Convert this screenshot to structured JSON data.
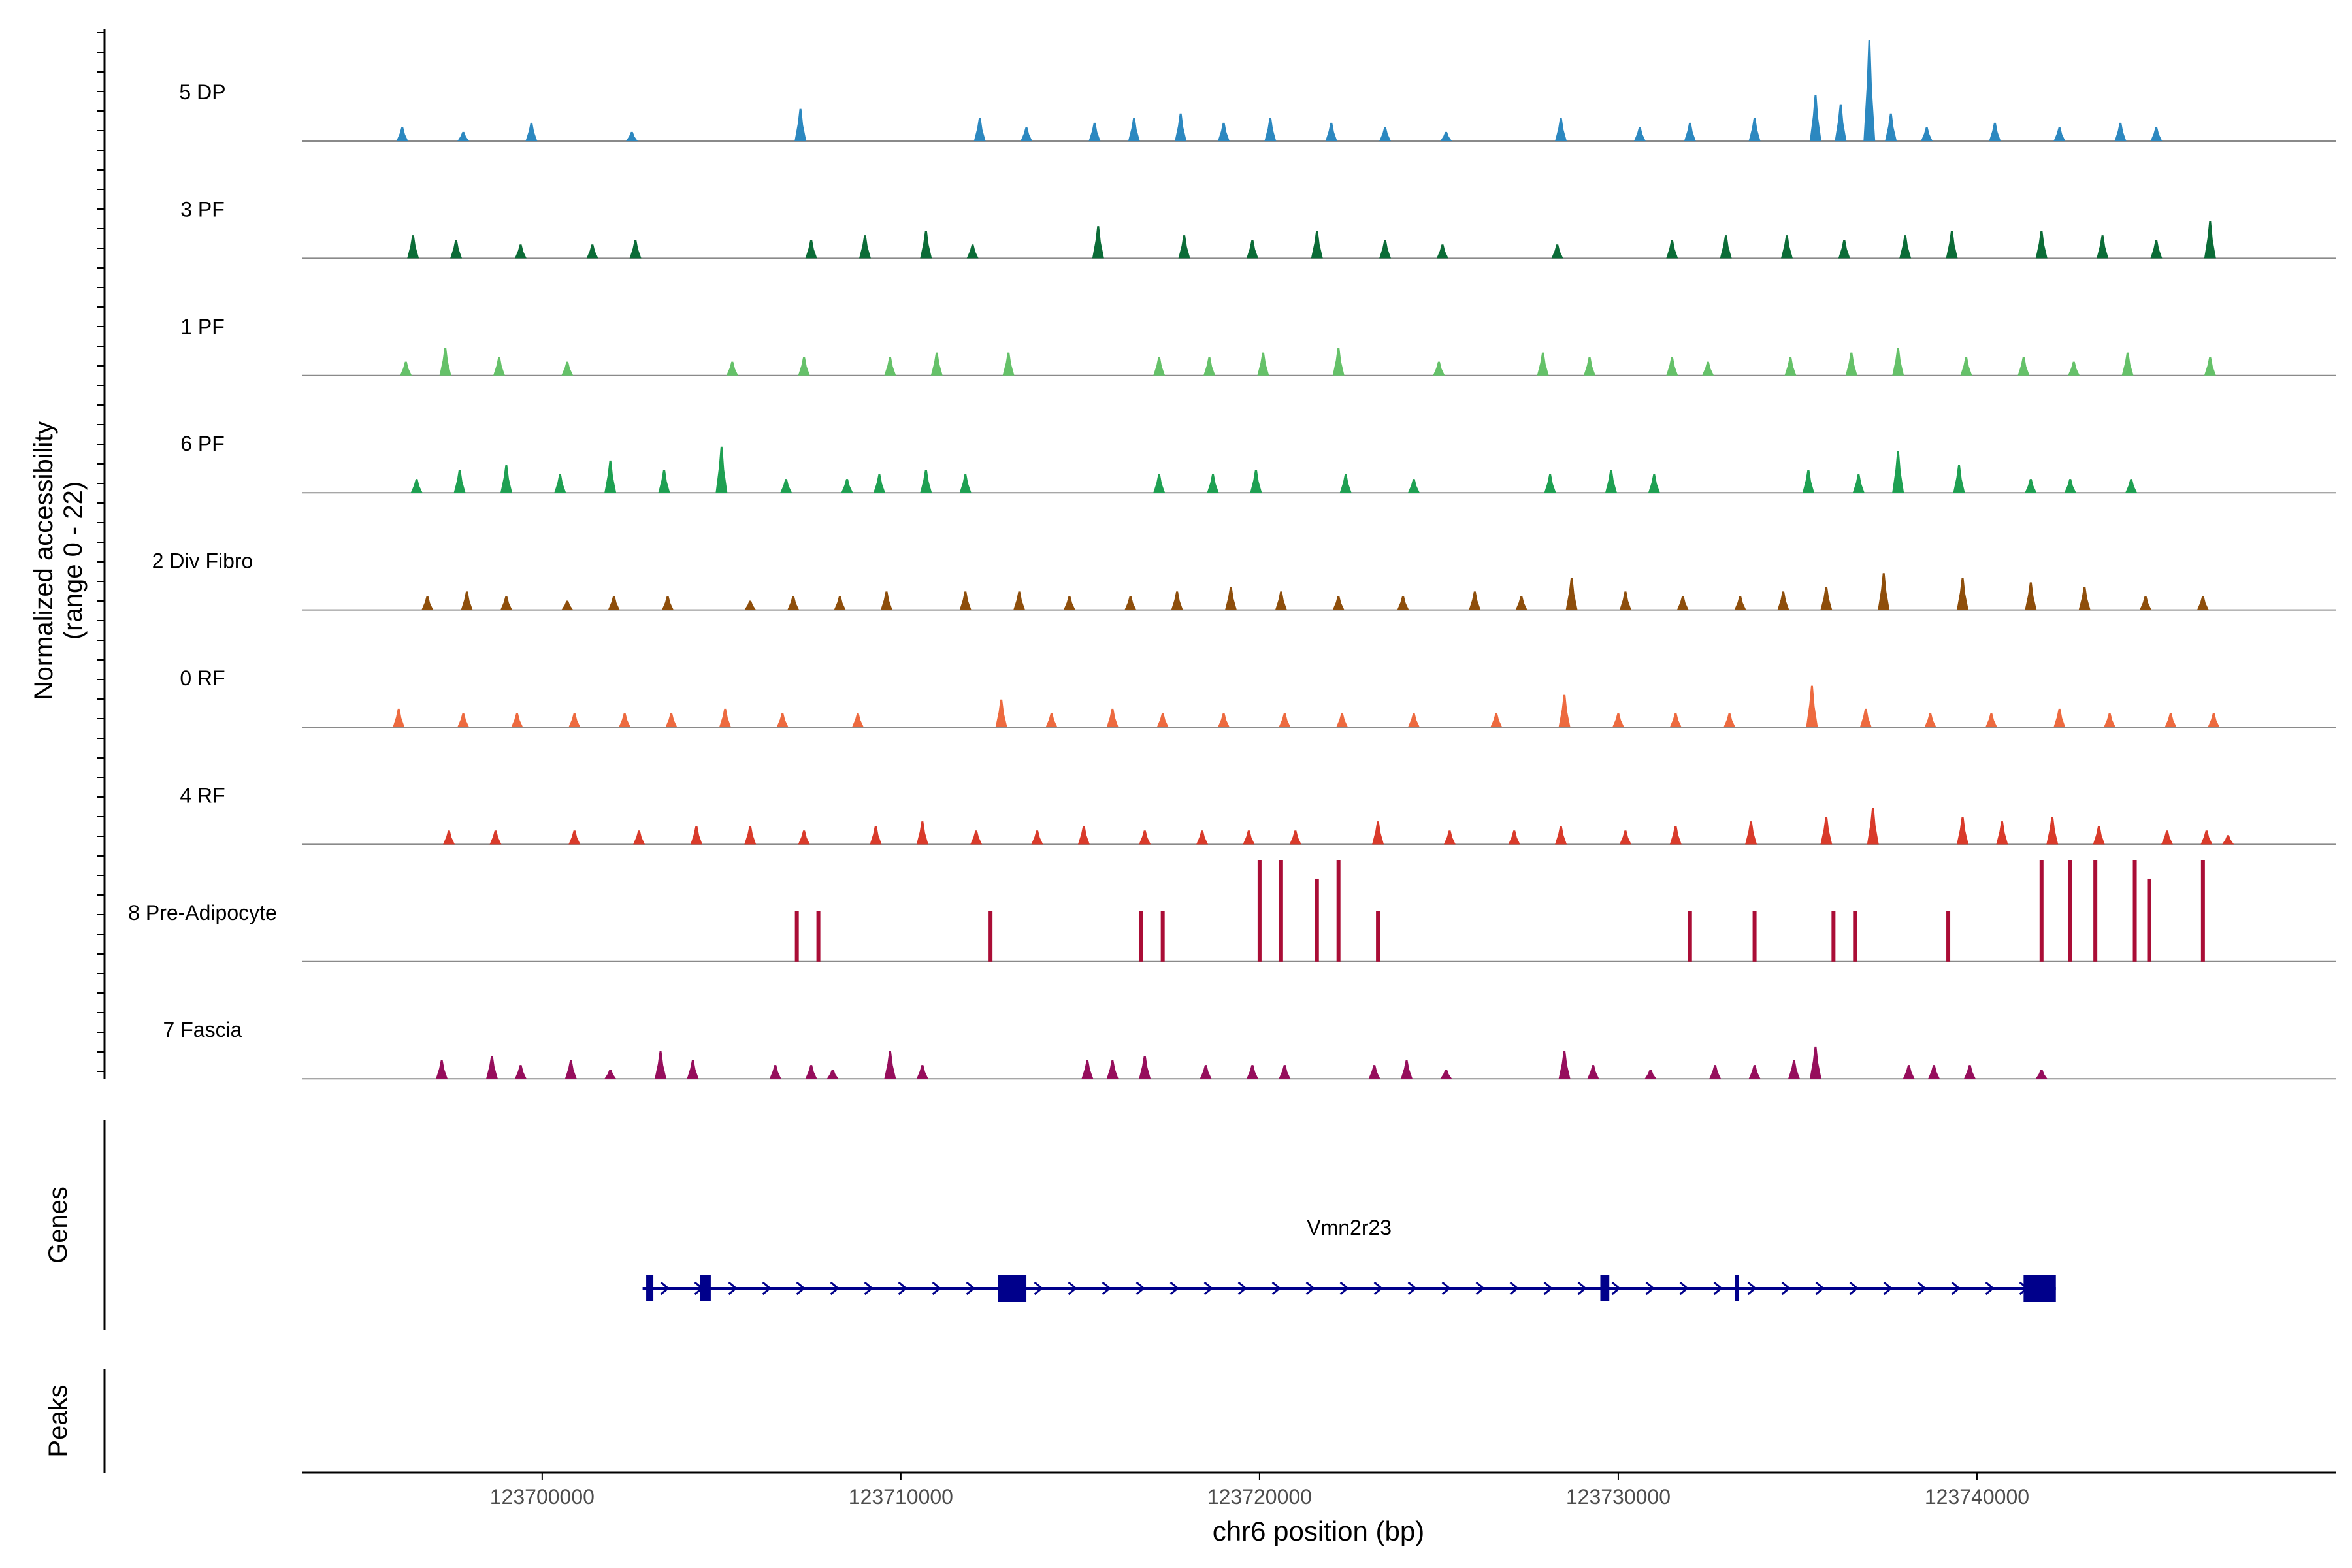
{
  "chart_data": {
    "type": "area",
    "title": "",
    "ylabel_line1": "Normalized accessibility",
    "ylabel_line2": "(range 0 - 22)",
    "ylim": [
      0,
      22
    ],
    "genes_label": "Genes",
    "peaks_label": "Peaks",
    "xlabel": "chr6 position (bp)",
    "xlim": [
      123693300,
      123750000
    ],
    "xticks": [
      123700000,
      123710000,
      123720000,
      123730000,
      123740000
    ],
    "xtick_labels": [
      "123700000",
      "123710000",
      "123720000",
      "123730000",
      "123740000"
    ],
    "series": [
      {
        "name": "5 DP",
        "color": "#2c88c0",
        "peaks": [
          [
            123696100,
            3
          ],
          [
            123697800,
            2
          ],
          [
            123699700,
            4
          ],
          [
            123702500,
            2
          ],
          [
            123707200,
            7
          ],
          [
            123712200,
            5
          ],
          [
            123713500,
            3
          ],
          [
            123715400,
            4
          ],
          [
            123716500,
            5
          ],
          [
            123717800,
            6
          ],
          [
            123719000,
            4
          ],
          [
            123720300,
            5
          ],
          [
            123722000,
            4
          ],
          [
            123723500,
            3
          ],
          [
            123725200,
            2
          ],
          [
            123728400,
            5
          ],
          [
            123730600,
            3
          ],
          [
            123732000,
            4
          ],
          [
            123733800,
            5
          ],
          [
            123735500,
            10
          ],
          [
            123736200,
            8
          ],
          [
            123737000,
            22
          ],
          [
            123737600,
            6
          ],
          [
            123738600,
            3
          ],
          [
            123740500,
            4
          ],
          [
            123742300,
            3
          ],
          [
            123744000,
            4
          ],
          [
            123745000,
            3
          ]
        ]
      },
      {
        "name": "3 PF",
        "color": "#0b6c37",
        "peaks": [
          [
            123696400,
            5
          ],
          [
            123697600,
            4
          ],
          [
            123699400,
            3
          ],
          [
            123701400,
            3
          ],
          [
            123702600,
            4
          ],
          [
            123707500,
            4
          ],
          [
            123709000,
            5
          ],
          [
            123710700,
            6
          ],
          [
            123712000,
            3
          ],
          [
            123715500,
            7
          ],
          [
            123717900,
            5
          ],
          [
            123719800,
            4
          ],
          [
            123721600,
            6
          ],
          [
            123723500,
            4
          ],
          [
            123725100,
            3
          ],
          [
            123728300,
            3
          ],
          [
            123731500,
            4
          ],
          [
            123733000,
            5
          ],
          [
            123734700,
            5
          ],
          [
            123736300,
            4
          ],
          [
            123738000,
            5
          ],
          [
            123739300,
            6
          ],
          [
            123741800,
            6
          ],
          [
            123743500,
            5
          ],
          [
            123745000,
            4
          ],
          [
            123746500,
            8
          ]
        ]
      },
      {
        "name": "1 PF",
        "color": "#65c169",
        "peaks": [
          [
            123696200,
            3
          ],
          [
            123697300,
            6
          ],
          [
            123698800,
            4
          ],
          [
            123700700,
            3
          ],
          [
            123705300,
            3
          ],
          [
            123707300,
            4
          ],
          [
            123709700,
            4
          ],
          [
            123711000,
            5
          ],
          [
            123713000,
            5
          ],
          [
            123717200,
            4
          ],
          [
            123718600,
            4
          ],
          [
            123720100,
            5
          ],
          [
            123722200,
            6
          ],
          [
            123725000,
            3
          ],
          [
            123727900,
            5
          ],
          [
            123729200,
            4
          ],
          [
            123731500,
            4
          ],
          [
            123732500,
            3
          ],
          [
            123734800,
            4
          ],
          [
            123736500,
            5
          ],
          [
            123737800,
            6
          ],
          [
            123739700,
            4
          ],
          [
            123741300,
            4
          ],
          [
            123742700,
            3
          ],
          [
            123744200,
            5
          ],
          [
            123746500,
            4
          ]
        ]
      },
      {
        "name": "6 PF",
        "color": "#1ea052",
        "peaks": [
          [
            123696500,
            3
          ],
          [
            123697700,
            5
          ],
          [
            123699000,
            6
          ],
          [
            123700500,
            4
          ],
          [
            123701900,
            7
          ],
          [
            123703400,
            5
          ],
          [
            123705000,
            10
          ],
          [
            123706800,
            3
          ],
          [
            123708500,
            3
          ],
          [
            123709400,
            4
          ],
          [
            123710700,
            5
          ],
          [
            123711800,
            4
          ],
          [
            123717200,
            4
          ],
          [
            123718700,
            4
          ],
          [
            123719900,
            5
          ],
          [
            123722400,
            4
          ],
          [
            123724300,
            3
          ],
          [
            123728100,
            4
          ],
          [
            123729800,
            5
          ],
          [
            123731000,
            4
          ],
          [
            123735300,
            5
          ],
          [
            123736700,
            4
          ],
          [
            123737800,
            9
          ],
          [
            123739500,
            6
          ],
          [
            123741500,
            3
          ],
          [
            123742600,
            3
          ],
          [
            123744300,
            3
          ]
        ]
      },
      {
        "name": "2 Div Fibro",
        "color": "#8e4e0b",
        "peaks": [
          [
            123696800,
            3
          ],
          [
            123697900,
            4
          ],
          [
            123699000,
            3
          ],
          [
            123700700,
            2
          ],
          [
            123702000,
            3
          ],
          [
            123703500,
            3
          ],
          [
            123705800,
            2
          ],
          [
            123707000,
            3
          ],
          [
            123708300,
            3
          ],
          [
            123709600,
            4
          ],
          [
            123711800,
            4
          ],
          [
            123713300,
            4
          ],
          [
            123714700,
            3
          ],
          [
            123716400,
            3
          ],
          [
            123717700,
            4
          ],
          [
            123719200,
            5
          ],
          [
            123720600,
            4
          ],
          [
            123722200,
            3
          ],
          [
            123724000,
            3
          ],
          [
            123726000,
            4
          ],
          [
            123727300,
            3
          ],
          [
            123728700,
            7
          ],
          [
            123730200,
            4
          ],
          [
            123731800,
            3
          ],
          [
            123733400,
            3
          ],
          [
            123734600,
            4
          ],
          [
            123735800,
            5
          ],
          [
            123737400,
            8
          ],
          [
            123739600,
            7
          ],
          [
            123741500,
            6
          ],
          [
            123743000,
            5
          ],
          [
            123744700,
            3
          ],
          [
            123746300,
            3
          ]
        ]
      },
      {
        "name": "0 RF",
        "color": "#ed6a3f",
        "peaks": [
          [
            123696000,
            4
          ],
          [
            123697800,
            3
          ],
          [
            123699300,
            3
          ],
          [
            123700900,
            3
          ],
          [
            123702300,
            3
          ],
          [
            123703600,
            3
          ],
          [
            123705100,
            4
          ],
          [
            123706700,
            3
          ],
          [
            123708800,
            3
          ],
          [
            123712800,
            6
          ],
          [
            123714200,
            3
          ],
          [
            123715900,
            4
          ],
          [
            123717300,
            3
          ],
          [
            123719000,
            3
          ],
          [
            123720700,
            3
          ],
          [
            123722300,
            3
          ],
          [
            123724300,
            3
          ],
          [
            123726600,
            3
          ],
          [
            123728500,
            7
          ],
          [
            123730000,
            3
          ],
          [
            123731600,
            3
          ],
          [
            123733100,
            3
          ],
          [
            123735400,
            9
          ],
          [
            123736900,
            4
          ],
          [
            123738700,
            3
          ],
          [
            123740400,
            3
          ],
          [
            123742300,
            4
          ],
          [
            123743700,
            3
          ],
          [
            123745400,
            3
          ],
          [
            123746600,
            3
          ]
        ]
      },
      {
        "name": "4 RF",
        "color": "#d93a2a",
        "peaks": [
          [
            123697400,
            3
          ],
          [
            123698700,
            3
          ],
          [
            123700900,
            3
          ],
          [
            123702700,
            3
          ],
          [
            123704300,
            4
          ],
          [
            123705800,
            4
          ],
          [
            123707300,
            3
          ],
          [
            123709300,
            4
          ],
          [
            123710600,
            5
          ],
          [
            123712100,
            3
          ],
          [
            123713800,
            3
          ],
          [
            123715100,
            4
          ],
          [
            123716800,
            3
          ],
          [
            123718400,
            3
          ],
          [
            123719700,
            3
          ],
          [
            123721000,
            3
          ],
          [
            123723300,
            5
          ],
          [
            123725300,
            3
          ],
          [
            123727100,
            3
          ],
          [
            123728400,
            4
          ],
          [
            123730200,
            3
          ],
          [
            123731600,
            4
          ],
          [
            123733700,
            5
          ],
          [
            123735800,
            6
          ],
          [
            123737100,
            8
          ],
          [
            123739600,
            6
          ],
          [
            123740700,
            5
          ],
          [
            123742100,
            6
          ],
          [
            123743400,
            4
          ],
          [
            123745300,
            3
          ],
          [
            123746400,
            3
          ],
          [
            123747000,
            2
          ]
        ]
      },
      {
        "name": "8 Pre-Adipocyte",
        "color": "#aa0d36",
        "peaks": [
          [
            123707100,
            11
          ],
          [
            123707700,
            11
          ],
          [
            123712500,
            11
          ],
          [
            123716700,
            11
          ],
          [
            123717300,
            11
          ],
          [
            123720000,
            22
          ],
          [
            123720600,
            22
          ],
          [
            123721600,
            18
          ],
          [
            123722200,
            22
          ],
          [
            123723300,
            11
          ],
          [
            123733800,
            11
          ],
          [
            123732000,
            11
          ],
          [
            123736000,
            11
          ],
          [
            123736600,
            11
          ],
          [
            123739200,
            11
          ],
          [
            123741800,
            22
          ],
          [
            123742600,
            22
          ],
          [
            123743300,
            22
          ],
          [
            123744400,
            22
          ],
          [
            123744800,
            18
          ],
          [
            123746300,
            22
          ]
        ]
      },
      {
        "name": "7 Fascia",
        "color": "#960e5c",
        "peaks": [
          [
            123697200,
            4
          ],
          [
            123698600,
            5
          ],
          [
            123699400,
            3
          ],
          [
            123700800,
            4
          ],
          [
            123701900,
            2
          ],
          [
            123703300,
            6
          ],
          [
            123704200,
            4
          ],
          [
            123706500,
            3
          ],
          [
            123707500,
            3
          ],
          [
            123708100,
            2
          ],
          [
            123709700,
            6
          ],
          [
            123710600,
            3
          ],
          [
            123715200,
            4
          ],
          [
            123715900,
            4
          ],
          [
            123716800,
            5
          ],
          [
            123718500,
            3
          ],
          [
            123719800,
            3
          ],
          [
            123720700,
            3
          ],
          [
            123723200,
            3
          ],
          [
            123724100,
            4
          ],
          [
            123725200,
            2
          ],
          [
            123728500,
            6
          ],
          [
            123729300,
            3
          ],
          [
            123730900,
            2
          ],
          [
            123732700,
            3
          ],
          [
            123733800,
            3
          ],
          [
            123734900,
            4
          ],
          [
            123735500,
            7
          ],
          [
            123738100,
            3
          ],
          [
            123738800,
            3
          ],
          [
            123739800,
            3
          ],
          [
            123741800,
            2
          ]
        ]
      }
    ],
    "gene": {
      "name": "Vmn2r23",
      "strand": "+",
      "start": 123702800,
      "end": 123742200,
      "exons": [
        [
          123702900,
          123703100
        ],
        [
          123704400,
          123704700
        ],
        [
          123712700,
          123713500
        ],
        [
          123729500,
          123729750
        ],
        [
          123733250,
          123733350
        ],
        [
          123741300,
          123742200
        ]
      ]
    }
  }
}
